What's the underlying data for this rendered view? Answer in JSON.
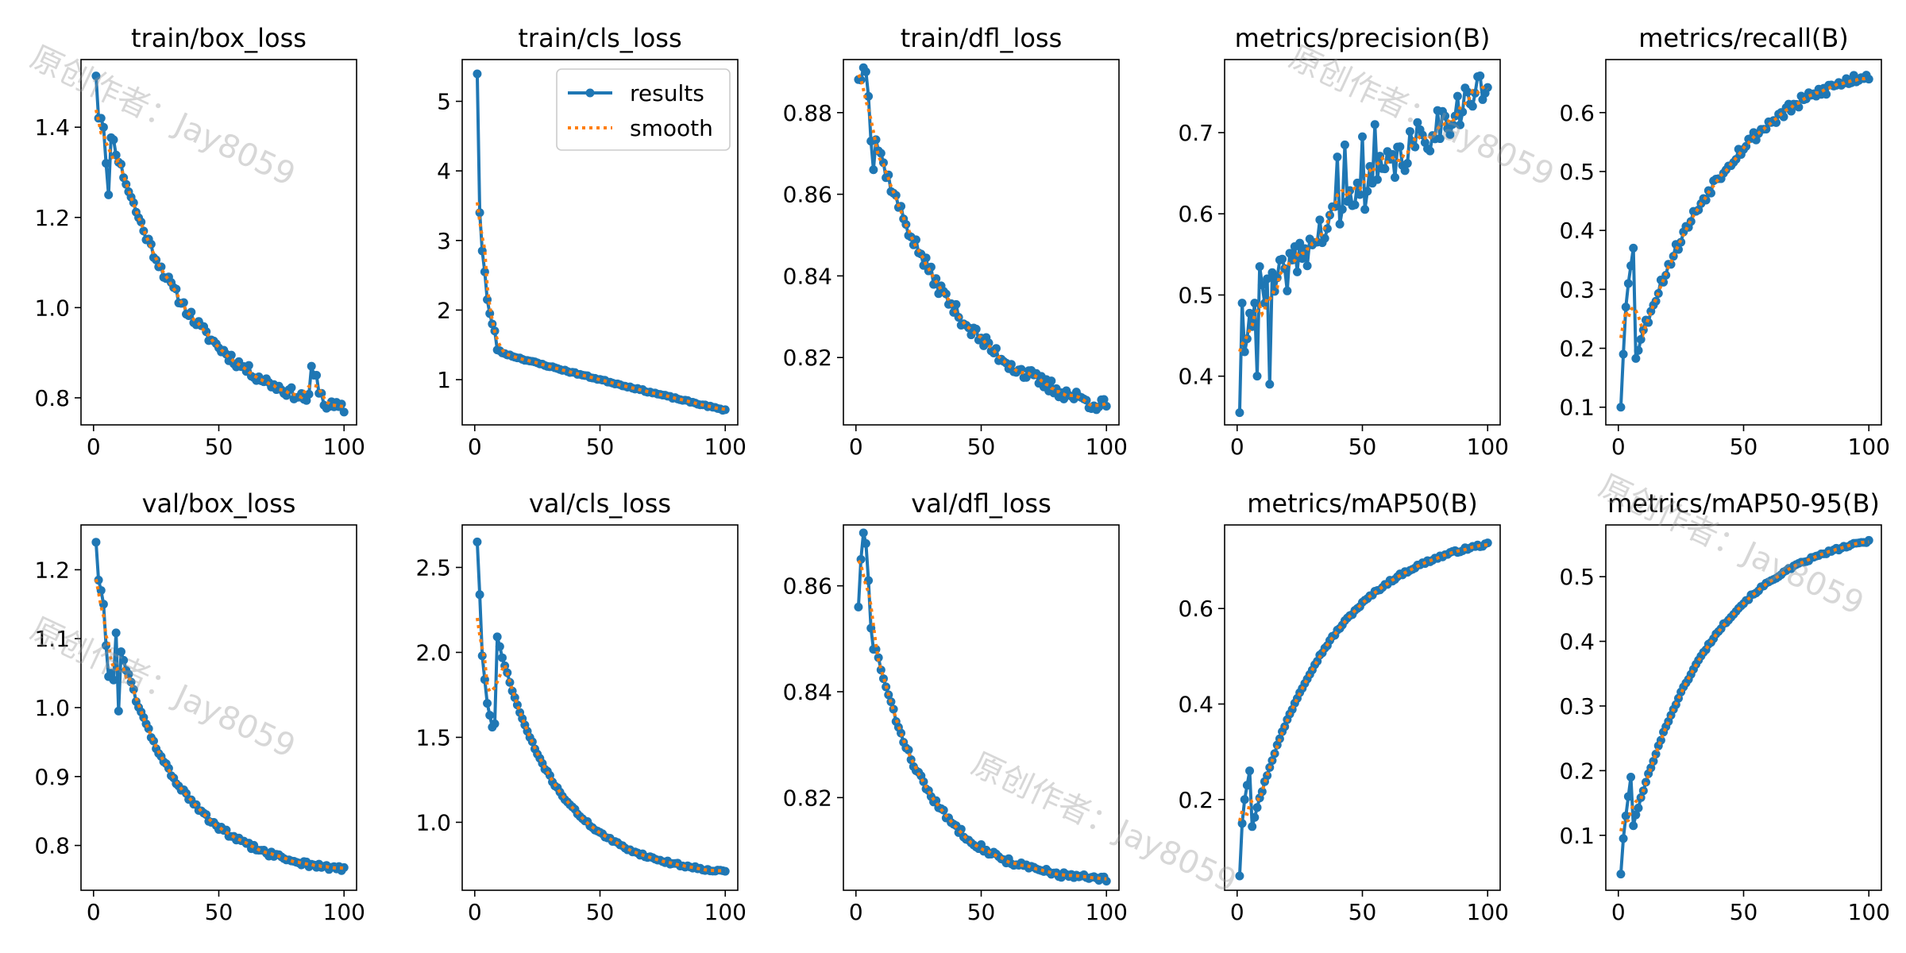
{
  "watermark": {
    "text": "原创作者：Jay8059"
  },
  "legend": {
    "results": "results",
    "smooth": "smooth"
  },
  "colors": {
    "results": "#1f77b4",
    "smooth": "#ff7f0e",
    "axes": "#000000"
  },
  "chart_data": [
    {
      "type": "line",
      "title": "train/box_loss",
      "xlim": [
        -5,
        105
      ],
      "ylim": [
        0.74,
        1.55
      ],
      "xticks": [
        0,
        50,
        100
      ],
      "yticks": [
        0.8,
        1.0,
        1.2,
        1.4
      ],
      "shape": "decay",
      "y_start": 1.52,
      "y_end": 0.775,
      "curve": 3.2,
      "noise": 0.012,
      "seed": 11,
      "overrides": {
        "2": 1.42,
        "3": 1.42,
        "4": 1.4,
        "5": 1.32,
        "6": 1.25,
        "87": 0.87,
        "88": 0.85,
        "89": 0.85,
        "90": 0.81,
        "91": 0.81
      }
    },
    {
      "type": "line",
      "title": "train/cls_loss",
      "xlim": [
        -5,
        105
      ],
      "ylim": [
        0.35,
        5.6
      ],
      "xticks": [
        0,
        50,
        100
      ],
      "yticks": [
        1,
        2,
        3,
        4,
        5
      ],
      "legend": "top-right",
      "shape": "decay_fast",
      "y_start": 5.4,
      "y_end": 0.56,
      "y_mid": 1.5,
      "curve": 0.9,
      "noise": 0.01,
      "seed": 23,
      "overrides": {
        "2": 3.4,
        "3": 2.85,
        "4": 2.55,
        "5": 2.15,
        "6": 1.95,
        "7": 1.8,
        "8": 1.7
      }
    },
    {
      "type": "line",
      "title": "train/dfl_loss",
      "xlim": [
        -5,
        105
      ],
      "ylim": [
        0.8035,
        0.893
      ],
      "xticks": [
        0,
        50,
        100
      ],
      "yticks": [
        0.82,
        0.84,
        0.86,
        0.88
      ],
      "shape": "decay",
      "y_start": 0.889,
      "y_end": 0.808,
      "curve": 3.0,
      "noise": 0.0018,
      "seed": 37,
      "overrides": {
        "2": 0.888,
        "3": 0.891,
        "4": 0.89,
        "5": 0.884,
        "6": 0.873,
        "7": 0.866
      }
    },
    {
      "type": "line",
      "title": "metrics/precision(B)",
      "xlim": [
        -5,
        105
      ],
      "ylim": [
        0.34,
        0.79
      ],
      "xticks": [
        0,
        50,
        100
      ],
      "yticks": [
        0.4,
        0.5,
        0.6,
        0.7
      ],
      "shape": "rise_linear",
      "y_start": 0.44,
      "y_end": 0.76,
      "curve": 1.3,
      "noise": 0.025,
      "seed": 41,
      "overrides": {
        "1": 0.355,
        "2": 0.49,
        "3": 0.43,
        "7": 0.49,
        "8": 0.4,
        "9": 0.535,
        "12": 0.52,
        "13": 0.39,
        "40": 0.67,
        "43": 0.685,
        "46": 0.61,
        "50": 0.695,
        "55": 0.71
      }
    },
    {
      "type": "line",
      "title": "metrics/recall(B)",
      "xlim": [
        -5,
        105
      ],
      "ylim": [
        0.07,
        0.69
      ],
      "xticks": [
        0,
        50,
        100
      ],
      "yticks": [
        0.1,
        0.2,
        0.3,
        0.4,
        0.5,
        0.6
      ],
      "shape": "rise",
      "y_start": 0.1,
      "y_end": 0.665,
      "curve": 2.6,
      "noise": 0.01,
      "seed": 53,
      "overrides": {
        "1": 0.1,
        "2": 0.19,
        "3": 0.27,
        "4": 0.31,
        "5": 0.34,
        "6": 0.37
      }
    },
    {
      "type": "line",
      "title": "val/box_loss",
      "xlim": [
        -5,
        105
      ],
      "ylim": [
        0.735,
        1.265
      ],
      "xticks": [
        0,
        50,
        100
      ],
      "yticks": [
        0.8,
        0.9,
        1.0,
        1.1,
        1.2
      ],
      "shape": "decay",
      "y_start": 1.24,
      "y_end": 0.765,
      "curve": 4.0,
      "noise": 0.004,
      "seed": 61,
      "overrides": {
        "1": 1.24,
        "2": 1.185,
        "3": 1.17,
        "4": 1.15,
        "5": 1.09,
        "6": 1.045,
        "7": 1.05,
        "8": 1.04,
        "10": 0.995
      }
    },
    {
      "type": "line",
      "title": "val/cls_loss",
      "xlim": [
        -5,
        105
      ],
      "ylim": [
        0.6,
        2.75
      ],
      "xticks": [
        0,
        50,
        100
      ],
      "yticks": [
        1.0,
        1.5,
        2.0,
        2.5
      ],
      "shape": "decay",
      "y_start": 2.65,
      "y_end": 0.71,
      "curve": 4.2,
      "noise": 0.008,
      "seed": 71,
      "overrides": {
        "1": 2.65,
        "2": 2.34,
        "3": 1.98,
        "4": 1.84,
        "5": 1.7,
        "6": 1.63,
        "7": 1.56,
        "8": 1.58
      }
    },
    {
      "type": "line",
      "title": "val/dfl_loss",
      "xlim": [
        -5,
        105
      ],
      "ylim": [
        0.8025,
        0.8715
      ],
      "xticks": [
        0,
        50,
        100
      ],
      "yticks": [
        0.82,
        0.84,
        0.86
      ],
      "shape": "decay",
      "y_start": 0.8645,
      "y_end": 0.8045,
      "curve": 4.5,
      "noise": 0.0006,
      "seed": 83,
      "overrides": {
        "1": 0.856,
        "2": 0.865,
        "3": 0.87,
        "4": 0.868,
        "5": 0.861,
        "6": 0.852,
        "7": 0.848,
        "8": 0.848
      }
    },
    {
      "type": "line",
      "title": "metrics/mAP50(B)",
      "xlim": [
        -5,
        105
      ],
      "ylim": [
        0.01,
        0.775
      ],
      "xticks": [
        0,
        50,
        100
      ],
      "yticks": [
        0.2,
        0.4,
        0.6
      ],
      "shape": "rise",
      "y_start": 0.04,
      "y_end": 0.735,
      "curve": 3.1,
      "noise": 0.003,
      "seed": 97,
      "overrides": {
        "1": 0.04,
        "2": 0.15,
        "3": 0.2,
        "4": 0.23,
        "5": 0.26
      }
    },
    {
      "type": "line",
      "title": "metrics/mAP50-95(B)",
      "xlim": [
        -5,
        105
      ],
      "ylim": [
        0.015,
        0.58
      ],
      "xticks": [
        0,
        50,
        100
      ],
      "yticks": [
        0.1,
        0.2,
        0.3,
        0.4,
        0.5
      ],
      "shape": "rise",
      "y_start": 0.04,
      "y_end": 0.555,
      "curve": 3.0,
      "noise": 0.002,
      "seed": 101,
      "overrides": {
        "1": 0.04,
        "2": 0.095,
        "3": 0.13,
        "4": 0.16,
        "5": 0.19
      }
    }
  ]
}
